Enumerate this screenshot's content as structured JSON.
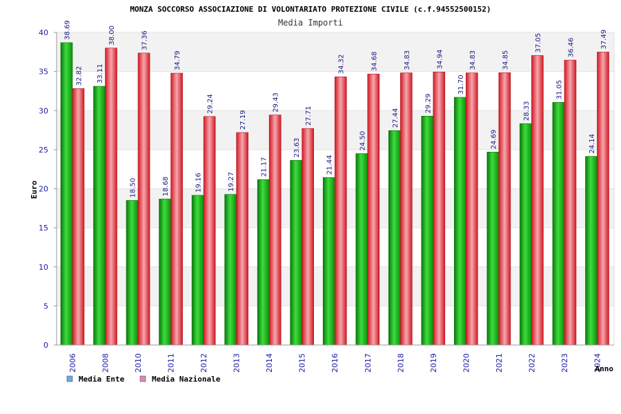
{
  "chart_data": {
    "type": "bar",
    "title": "MONZA SOCCORSO ASSOCIAZIONE DI VOLONTARIATO PROTEZIONE CIVILE (c.f.94552500152)",
    "subtitle": "Media Importi",
    "xlabel": "Anno",
    "ylabel": "Euro",
    "ylim": [
      0,
      40
    ],
    "yticks": [
      0,
      5,
      10,
      15,
      20,
      25,
      30,
      35,
      40
    ],
    "grid": true,
    "legend_position": "bottom-left",
    "categories": [
      "2006",
      "2008",
      "2010",
      "2011",
      "2012",
      "2013",
      "2014",
      "2015",
      "2016",
      "2017",
      "2018",
      "2019",
      "2020",
      "2021",
      "2022",
      "2023",
      "2024"
    ],
    "series": [
      {
        "name": "Media Ente",
        "legend_color": "#66aaee",
        "bar_color": "#1cb51c",
        "values": [
          38.69,
          33.11,
          18.5,
          18.68,
          19.16,
          19.27,
          21.17,
          23.63,
          21.44,
          24.5,
          27.44,
          29.29,
          31.7,
          24.69,
          28.33,
          31.05,
          24.14
        ],
        "labels": [
          "38.69",
          "33.11",
          "18.50",
          "18.68",
          "19.16",
          "19.27",
          "21.17",
          "23.63",
          "21.44",
          "24.50",
          "27.44",
          "29.29",
          "31.70",
          "24.69",
          "28.33",
          "31.05",
          "24.14"
        ]
      },
      {
        "name": "Media Nazionale",
        "legend_color": "#dd88bb",
        "bar_color": "#e8323c",
        "values": [
          32.82,
          38.0,
          37.36,
          34.79,
          29.24,
          27.19,
          29.43,
          27.71,
          34.32,
          34.68,
          34.83,
          34.94,
          34.83,
          34.85,
          37.05,
          36.46,
          37.49
        ],
        "labels": [
          "32.82",
          "38.00",
          "37.36",
          "34.79",
          "29.24",
          "27.19",
          "29.43",
          "27.71",
          "34.32",
          "34.68",
          "34.83",
          "34.94",
          "34.83",
          "34.85",
          "37.05",
          "36.46",
          "37.49"
        ]
      }
    ]
  }
}
